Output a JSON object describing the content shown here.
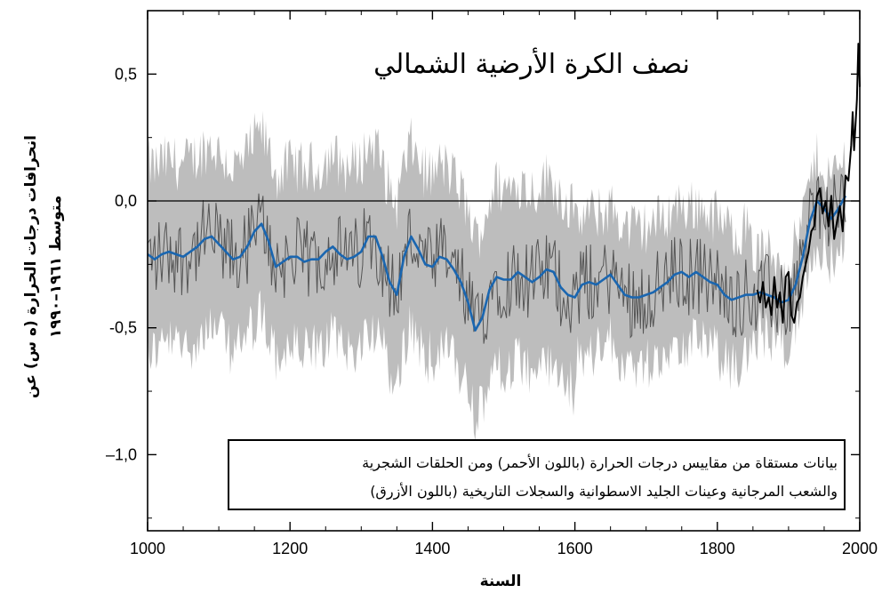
{
  "chart_data": {
    "type": "line",
    "title": "نصف الكرة الأرضية الشمالي",
    "xlabel": "السنة",
    "ylabel_line1": "انحرافات درجات الحرارة (ه س) عن",
    "ylabel_line2": "متوسط ١٩٦١–١٩٩٠",
    "xlim": [
      1000,
      2000
    ],
    "ylim": [
      -1.3,
      0.75
    ],
    "x_ticks": [
      1000,
      1200,
      1400,
      1600,
      1800,
      2000
    ],
    "x_tick_labels": [
      "1000",
      "1200",
      "1400",
      "1600",
      "1800",
      "2000"
    ],
    "y_ticks": [
      -1.0,
      -0.5,
      0.0,
      0.5
    ],
    "y_tick_labels": [
      "–1,0",
      "-0,5",
      "0,0",
      "0,5"
    ],
    "reference_line_y": 0,
    "legend_lines": [
      "بيانات مستقاة من مقاييس درجات الحرارة (باللون الأحمر) ومن الحلقات الشجرية",
      "والشعب المرجانية وعينات الجليد الاسطوانية والسجلات التاريخية (باللون الأزرق)"
    ],
    "legend_position": "bottom-right",
    "grid": false,
    "colors": {
      "smoothed": "#1a66b0",
      "annual": "#555555",
      "uncertainty": "#bdbdbd",
      "instrumental": "#000000",
      "axes": "#000000"
    },
    "series": [
      {
        "kind": "smoothed-proxy-line",
        "x": [
          1000,
          1010,
          1020,
          1030,
          1040,
          1050,
          1060,
          1070,
          1080,
          1090,
          1100,
          1110,
          1120,
          1130,
          1140,
          1150,
          1160,
          1170,
          1180,
          1190,
          1200,
          1210,
          1220,
          1230,
          1240,
          1250,
          1260,
          1270,
          1280,
          1290,
          1300,
          1310,
          1320,
          1330,
          1340,
          1350,
          1360,
          1370,
          1380,
          1390,
          1400,
          1410,
          1420,
          1430,
          1440,
          1450,
          1460,
          1470,
          1480,
          1490,
          1500,
          1510,
          1520,
          1530,
          1540,
          1550,
          1560,
          1570,
          1580,
          1590,
          1600,
          1610,
          1620,
          1630,
          1640,
          1650,
          1660,
          1670,
          1680,
          1690,
          1700,
          1710,
          1720,
          1730,
          1740,
          1750,
          1760,
          1770,
          1780,
          1790,
          1800,
          1810,
          1820,
          1830,
          1840,
          1850,
          1860,
          1870,
          1880,
          1890,
          1900,
          1910,
          1920,
          1930,
          1940,
          1950,
          1960,
          1970,
          1980
        ],
        "y": [
          -0.21,
          -0.23,
          -0.21,
          -0.2,
          -0.21,
          -0.22,
          -0.2,
          -0.18,
          -0.15,
          -0.14,
          -0.17,
          -0.2,
          -0.23,
          -0.22,
          -0.18,
          -0.12,
          -0.09,
          -0.16,
          -0.26,
          -0.24,
          -0.22,
          -0.22,
          -0.24,
          -0.23,
          -0.23,
          -0.2,
          -0.18,
          -0.21,
          -0.23,
          -0.22,
          -0.2,
          -0.14,
          -0.14,
          -0.22,
          -0.32,
          -0.37,
          -0.22,
          -0.14,
          -0.19,
          -0.25,
          -0.26,
          -0.22,
          -0.23,
          -0.27,
          -0.32,
          -0.4,
          -0.51,
          -0.46,
          -0.35,
          -0.3,
          -0.31,
          -0.31,
          -0.28,
          -0.3,
          -0.32,
          -0.3,
          -0.27,
          -0.28,
          -0.34,
          -0.37,
          -0.38,
          -0.33,
          -0.32,
          -0.33,
          -0.31,
          -0.29,
          -0.33,
          -0.37,
          -0.38,
          -0.38,
          -0.37,
          -0.36,
          -0.34,
          -0.32,
          -0.29,
          -0.28,
          -0.3,
          -0.28,
          -0.3,
          -0.32,
          -0.33,
          -0.37,
          -0.39,
          -0.38,
          -0.37,
          -0.37,
          -0.36,
          -0.37,
          -0.38,
          -0.4,
          -0.39,
          -0.33,
          -0.22,
          -0.08,
          0.0,
          -0.03,
          -0.07,
          -0.03,
          0.02
        ]
      },
      {
        "kind": "instrumental-line",
        "x": [
          1856,
          1860,
          1864,
          1868,
          1872,
          1876,
          1880,
          1884,
          1888,
          1892,
          1896,
          1900,
          1904,
          1908,
          1912,
          1916,
          1920,
          1924,
          1928,
          1932,
          1936,
          1940,
          1944,
          1948,
          1952,
          1956,
          1960,
          1964,
          1968,
          1972,
          1976,
          1980,
          1984,
          1988,
          1990,
          1992,
          1994,
          1996,
          1998,
          2000
        ],
        "y": [
          -0.35,
          -0.4,
          -0.32,
          -0.42,
          -0.38,
          -0.45,
          -0.3,
          -0.42,
          -0.36,
          -0.48,
          -0.3,
          -0.28,
          -0.45,
          -0.48,
          -0.4,
          -0.38,
          -0.3,
          -0.25,
          -0.2,
          -0.12,
          -0.1,
          0.02,
          0.05,
          -0.05,
          0.0,
          -0.1,
          0.02,
          -0.15,
          -0.08,
          -0.02,
          -0.12,
          0.1,
          0.08,
          0.22,
          0.35,
          0.2,
          0.3,
          0.4,
          0.62,
          0.45
        ]
      }
    ]
  }
}
